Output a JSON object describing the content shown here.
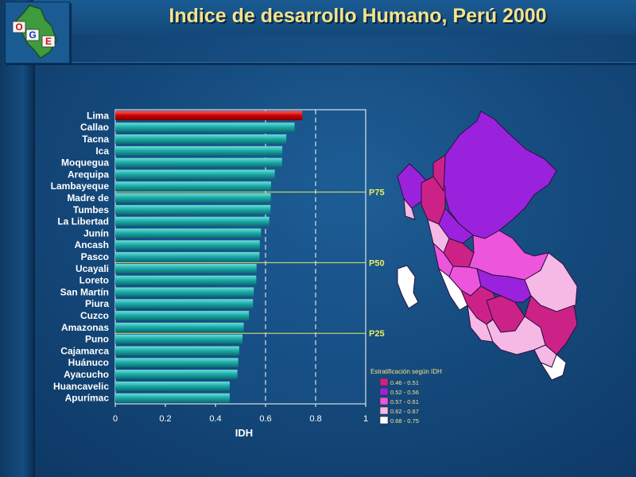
{
  "title": "Indice de desarrollo Humano, Perú 2000",
  "logo": {
    "letters": [
      "O",
      "G",
      "E"
    ]
  },
  "chart_data": {
    "type": "bar",
    "orientation": "horizontal",
    "xlabel": "IDH",
    "xlim": [
      0,
      1
    ],
    "xticks": [
      "0",
      "0.2",
      "0.4",
      "0.6",
      "0.8",
      "1"
    ],
    "reference_lines": [
      0.6,
      0.8
    ],
    "categories": [
      "Lima",
      "Callao",
      "Tacna",
      "Ica",
      "Moquegua",
      "Arequipa",
      "Lambayeque",
      "Madre de",
      "Tumbes",
      "La Libertad",
      "Junín",
      "Ancash",
      "Pasco",
      "Ucayali",
      "Loreto",
      "San Martín",
      "Piura",
      "Cuzco",
      "Amazonas",
      "Puno",
      "Cajamarca",
      "Huánuco",
      "Ayacucho",
      "Huancavelic",
      "Apurímac"
    ],
    "values": [
      0.747,
      0.716,
      0.683,
      0.667,
      0.666,
      0.637,
      0.622,
      0.621,
      0.62,
      0.615,
      0.582,
      0.577,
      0.576,
      0.564,
      0.563,
      0.553,
      0.55,
      0.534,
      0.513,
      0.508,
      0.495,
      0.491,
      0.488,
      0.457,
      0.457
    ],
    "highlight_color": "#cc0000",
    "bar_color": "#18a8a6",
    "percentiles": [
      {
        "label": "P75",
        "after": "Lambayeque"
      },
      {
        "label": "P50",
        "after": "Pasco"
      },
      {
        "label": "P25",
        "after": "Amazonas"
      }
    ]
  },
  "legend": {
    "title": "Estratificación según IDH",
    "items": [
      {
        "label": "0.46 - 0.51",
        "color": "#cc2288"
      },
      {
        "label": "0.52 - 0.56",
        "color": "#9b22dd"
      },
      {
        "label": "0.57 - 0.61",
        "color": "#ee55dd"
      },
      {
        "label": "0.62 - 0.67",
        "color": "#f6b8e4"
      },
      {
        "label": "0.68 - 0.75",
        "color": "#ffffff"
      }
    ]
  }
}
